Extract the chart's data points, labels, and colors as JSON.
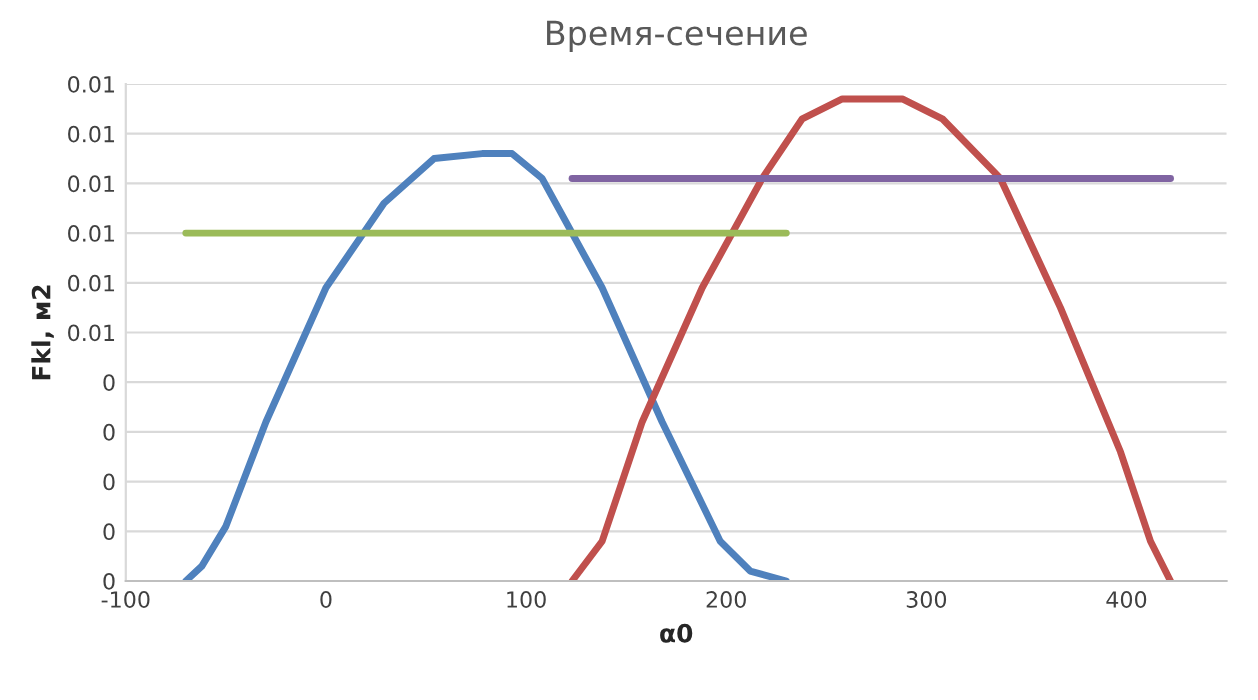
{
  "chart_data": {
    "type": "line",
    "title": "Время-сечение",
    "xlabel": "α0",
    "ylabel": "Fkl, м2",
    "xlim": [
      -100,
      450
    ],
    "xticks": [
      -100,
      0,
      100,
      200,
      300,
      400
    ],
    "ylim": [
      0,
      0.01
    ],
    "yticks": [
      {
        "value": 0,
        "label": "0"
      },
      {
        "value": 0.001,
        "label": "0"
      },
      {
        "value": 0.002,
        "label": "0"
      },
      {
        "value": 0.003,
        "label": "0"
      },
      {
        "value": 0.004,
        "label": "0"
      },
      {
        "value": 0.005,
        "label": "0.01"
      },
      {
        "value": 0.006,
        "label": "0.01"
      },
      {
        "value": 0.007,
        "label": "0.01"
      },
      {
        "value": 0.008,
        "label": "0.01"
      },
      {
        "value": 0.009,
        "label": "0.01"
      },
      {
        "value": 0.01,
        "label": "0.01"
      }
    ],
    "grid": "y",
    "legend": false,
    "marker": "none",
    "line_style": "solid",
    "series": [
      {
        "color": "#4f81bd",
        "x": [
          -70,
          -62,
          -50,
          -30,
          0,
          29,
          54,
          78,
          93,
          108,
          138,
          168,
          197,
          212,
          230
        ],
        "values": [
          0,
          0.0003,
          0.0011,
          0.0032,
          0.0059,
          0.0076,
          0.0085,
          0.0086,
          0.0086,
          0.0081,
          0.0059,
          0.0032,
          0.0008,
          0.0002,
          0
        ]
      },
      {
        "color": "#c0504d",
        "x": [
          123,
          138,
          158,
          188,
          218,
          238,
          258,
          288,
          308,
          337,
          367,
          397,
          412,
          422
        ],
        "values": [
          0,
          0.0008,
          0.0032,
          0.0059,
          0.0081,
          0.0093,
          0.0097,
          0.0097,
          0.0093,
          0.0081,
          0.0055,
          0.0026,
          0.0008,
          0
        ]
      },
      {
        "color": "#9bbb59",
        "x": [
          -70,
          230
        ],
        "values": [
          0.007,
          0.007
        ]
      },
      {
        "color": "#8064a2",
        "x": [
          123,
          422
        ],
        "values": [
          0.0081,
          0.0081
        ]
      }
    ]
  }
}
